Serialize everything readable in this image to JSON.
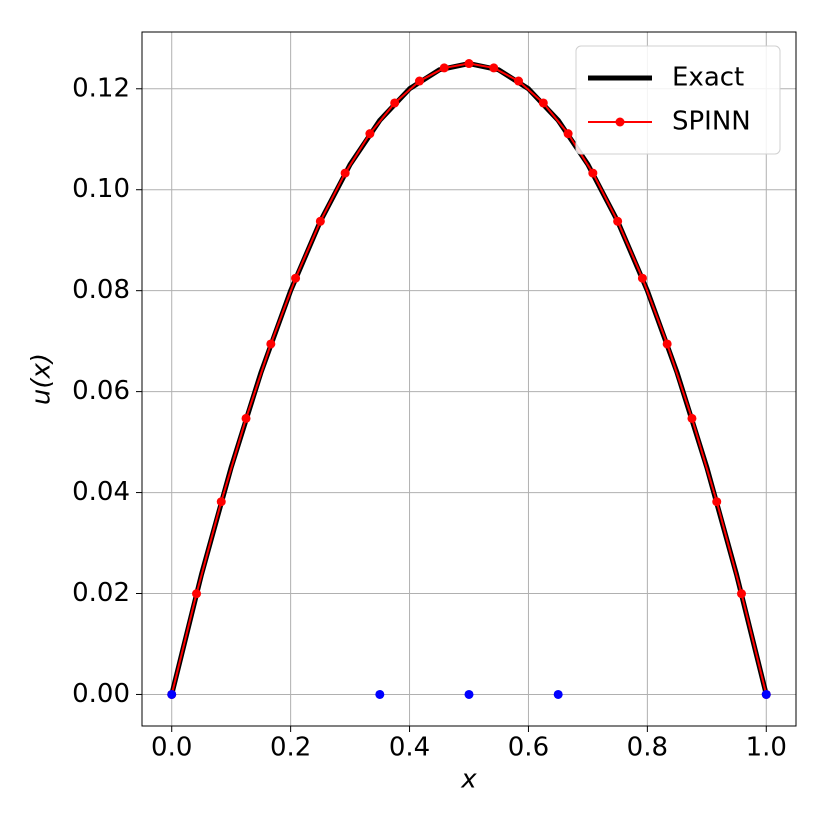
{
  "chart_data": {
    "type": "line",
    "xlabel": "x",
    "ylabel": "u(x)",
    "xlim": [
      -0.05,
      1.05
    ],
    "ylim": [
      -0.00625,
      0.13125
    ],
    "xticks": [
      {
        "value": 0,
        "label": "0.0"
      },
      0.2,
      0.4,
      0.6,
      0.8,
      {
        "value": 1,
        "label": "1.0"
      }
    ],
    "yticks": [
      {
        "value": 0,
        "label": "0.00"
      },
      0.02,
      0.04,
      0.06,
      0.08,
      {
        "value": 0.1,
        "label": "0.10"
      },
      0.12
    ],
    "grid": true,
    "legend": "upper right",
    "series": [
      {
        "name": "Exact",
        "color": "#000000",
        "linewidth": 5,
        "markers": false,
        "x": [
          0,
          0.05,
          0.1,
          0.15,
          0.2,
          0.25,
          0.3,
          0.35,
          0.4,
          0.45,
          0.5,
          0.55,
          0.6,
          0.65,
          0.7,
          0.75,
          0.8,
          0.85,
          0.9,
          0.95,
          1
        ],
        "values": [
          0,
          0.02375,
          0.045,
          0.06375,
          0.08,
          0.09375,
          0.105,
          0.11375,
          0.12,
          0.12375,
          0.125,
          0.12375,
          0.12,
          0.11375,
          0.105,
          0.09375,
          0.08,
          0.06375,
          0.045,
          0.02375,
          0
        ]
      },
      {
        "name": "SPINN",
        "color": "#ff0000",
        "linewidth": 2,
        "markers": true,
        "x": [
          0,
          0.0417,
          0.0833,
          0.125,
          0.1667,
          0.2083,
          0.25,
          0.2917,
          0.3333,
          0.375,
          0.4167,
          0.4583,
          0.5,
          0.5417,
          0.5833,
          0.625,
          0.6667,
          0.7083,
          0.75,
          0.7917,
          0.8333,
          0.875,
          0.9167,
          0.9583,
          1
        ],
        "values": [
          0,
          0.01997,
          0.03819,
          0.05469,
          0.06944,
          0.08247,
          0.09375,
          0.1033,
          0.11111,
          0.11719,
          0.12153,
          0.12413,
          0.125,
          0.12413,
          0.12153,
          0.11719,
          0.11111,
          0.1033,
          0.09375,
          0.08247,
          0.06944,
          0.05469,
          0.03819,
          0.01997,
          0
        ]
      },
      {
        "color": "#0000ff",
        "linewidth": 0,
        "markers": true,
        "x": [
          0,
          0.35,
          0.5,
          0.65,
          1
        ],
        "values": [
          0,
          0,
          0,
          0,
          0
        ]
      }
    ]
  }
}
